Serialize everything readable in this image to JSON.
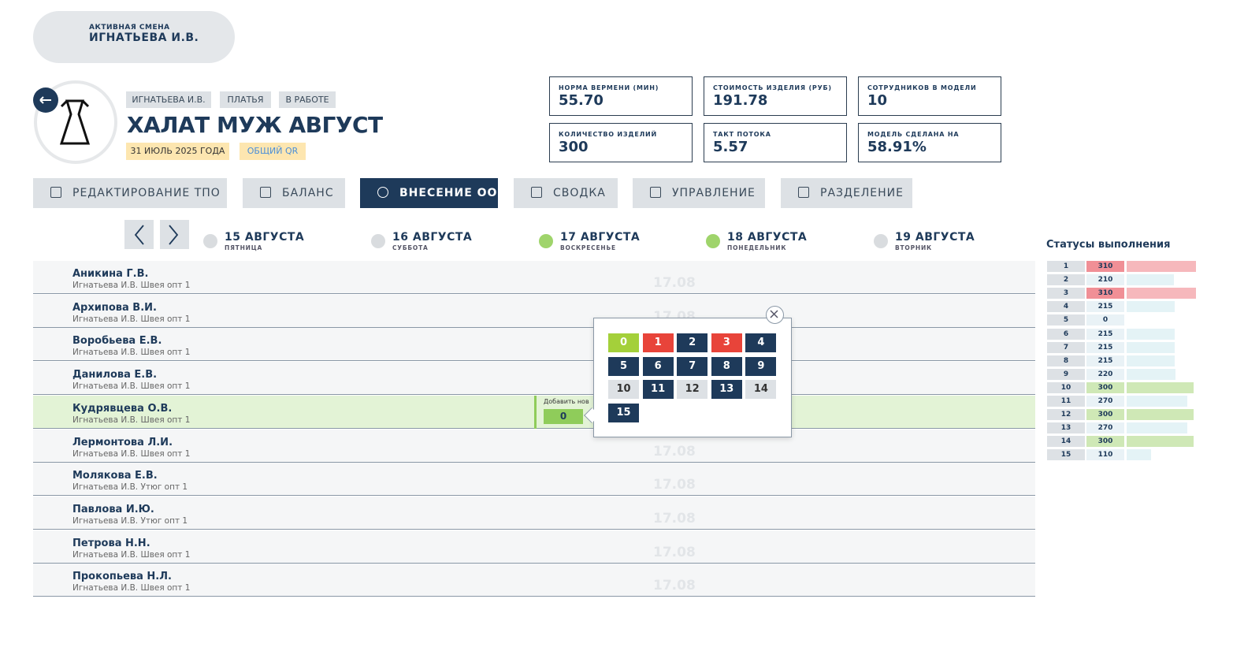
{
  "shift": {
    "label": "АКТИВНАЯ СМЕНА",
    "name": "ИГНАТЬЕВА И.В."
  },
  "model": {
    "tags": [
      "ИГНАТЬЕВА И.В.",
      "ПЛАТЬЯ",
      "В РАБОТЕ"
    ],
    "title": "ХАЛАТ МУЖ АВГУСТ",
    "date": "31 ИЮЛЬ 2025 ГОДА",
    "qr": "ОБЩИЙ QR"
  },
  "stats": [
    {
      "label": "НОРМА ВЕРМЕНИ (МИН)",
      "value": "55.70"
    },
    {
      "label": "СТОИМОСТЬ ИЗДЕЛИЯ (РУБ)",
      "value": "191.78"
    },
    {
      "label": "СОТРУДНИКОВ В МОДЕЛИ",
      "value": "10"
    },
    {
      "label": "КОЛИЧЕСТВО ИЗДЕЛИЙ",
      "value": "300"
    },
    {
      "label": "ТАКТ ПОТОКА",
      "value": "5.57"
    },
    {
      "label": "МОДЕЛЬ СДЕЛАНА НА",
      "value": "58.91%"
    }
  ],
  "tabs": {
    "items": [
      "РЕДАКТИРОВАНИЕ ТПО",
      "БАЛАНС",
      "ВНЕСЕНИЕ ОО",
      "СВОДКА",
      "УПРАВЛЕНИЕ",
      "РАЗДЕЛЕНИЕ"
    ],
    "active": 2
  },
  "days": [
    {
      "date": "15 АВГУСТА",
      "weekday": "ПЯТНИЦА",
      "done": false
    },
    {
      "date": "16 АВГУСТА",
      "weekday": "СУББОТА",
      "done": false
    },
    {
      "date": "17 АВГУСТА",
      "weekday": "ВОСКРЕСЕНЬЕ",
      "done": true
    },
    {
      "date": "18 АВГУСТА",
      "weekday": "ПОНЕДЕЛЬНИК",
      "done": true
    },
    {
      "date": "19 АВГУСТА",
      "weekday": "ВТОРНИК",
      "done": false
    }
  ],
  "placeholder": "17.08",
  "employees": [
    {
      "name": "Аникина Г.В.",
      "role": "Игнатьева И.В. Швея опт 1",
      "online": true
    },
    {
      "name": "Архипова В.И.",
      "role": "Игнатьева И.В. Швея опт 1",
      "online": false
    },
    {
      "name": "Воробьева Е.В.",
      "role": "Игнатьева И.В. Швея опт 1",
      "online": true
    },
    {
      "name": "Данилова Е.В.",
      "role": "Игнатьева И.В. Швея опт 1",
      "online": true
    },
    {
      "name": "Кудрявцева О.В.",
      "role": "Игнатьева И.В. Швея опт 1",
      "online": false
    },
    {
      "name": "Лермонтова Л.И.",
      "role": "Игнатьева И.В. Швея опт 1",
      "online": true
    },
    {
      "name": "Молякова Е.В.",
      "role": "Игнатьева И.В. Утюг опт 1",
      "online": false
    },
    {
      "name": "Павлова И.Ю.",
      "role": "Игнатьева И.В. Утюг опт 1",
      "online": true
    },
    {
      "name": "Петрова Н.Н.",
      "role": "Игнатьева И.В. Швея опт 1",
      "online": true
    },
    {
      "name": "Прокопьева Н.Л.",
      "role": "Игнатьева И.В. Швея опт 1",
      "online": false
    }
  ],
  "selected_row": 4,
  "quick_add": {
    "label": "Добавить нов",
    "value": "0"
  },
  "picker": {
    "items": [
      {
        "label": "0",
        "state": "done"
      },
      {
        "label": "1",
        "state": "error"
      },
      {
        "label": "2",
        "state": "active"
      },
      {
        "label": "3",
        "state": "error"
      },
      {
        "label": "4",
        "state": "active"
      },
      {
        "label": "5",
        "state": "active"
      },
      {
        "label": "6",
        "state": "active"
      },
      {
        "label": "7",
        "state": "active"
      },
      {
        "label": "8",
        "state": "active"
      },
      {
        "label": "9",
        "state": "active"
      },
      {
        "label": "10",
        "state": "empty"
      },
      {
        "label": "11",
        "state": "active"
      },
      {
        "label": "12",
        "state": "empty"
      },
      {
        "label": "13",
        "state": "active"
      },
      {
        "label": "14",
        "state": "empty"
      },
      {
        "label": "15",
        "state": "active"
      }
    ]
  },
  "statuses": {
    "title": "Статусы выполнения",
    "rows": [
      {
        "n": 1,
        "value": 310,
        "state": "over"
      },
      {
        "n": 2,
        "value": 210,
        "state": "normal"
      },
      {
        "n": 3,
        "value": 310,
        "state": "over"
      },
      {
        "n": 4,
        "value": 215,
        "state": "normal"
      },
      {
        "n": 5,
        "value": 0,
        "state": "normal"
      },
      {
        "n": 6,
        "value": 215,
        "state": "normal"
      },
      {
        "n": 7,
        "value": 215,
        "state": "normal"
      },
      {
        "n": 8,
        "value": 215,
        "state": "normal"
      },
      {
        "n": 9,
        "value": 220,
        "state": "normal"
      },
      {
        "n": 10,
        "value": 300,
        "state": "full"
      },
      {
        "n": 11,
        "value": 270,
        "state": "normal"
      },
      {
        "n": 12,
        "value": 300,
        "state": "full"
      },
      {
        "n": 13,
        "value": 270,
        "state": "normal"
      },
      {
        "n": 14,
        "value": 300,
        "state": "full"
      },
      {
        "n": 15,
        "value": 110,
        "state": "normal"
      }
    ]
  }
}
